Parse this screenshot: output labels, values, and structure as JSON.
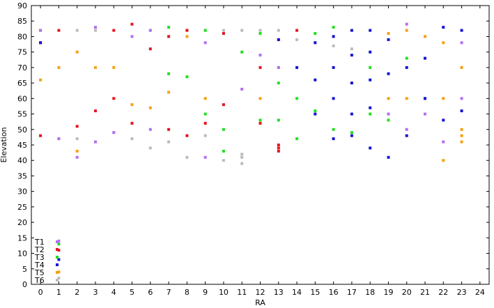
{
  "chart_data": {
    "type": "scatter",
    "title": "",
    "xlabel": "RA",
    "ylabel": "Elevation",
    "xlim": [
      -0.5,
      24.5
    ],
    "ylim": [
      0,
      90
    ],
    "xticks": [
      0,
      1,
      2,
      3,
      4,
      5,
      6,
      7,
      8,
      9,
      10,
      11,
      12,
      13,
      14,
      15,
      16,
      17,
      18,
      19,
      20,
      21,
      22,
      23,
      24
    ],
    "yticks": [
      0,
      5,
      10,
      15,
      20,
      25,
      30,
      35,
      40,
      45,
      50,
      55,
      60,
      65,
      70,
      75,
      80,
      85,
      90
    ],
    "grid": false,
    "legend_position": "bottom-left",
    "series": [
      {
        "name": "T1",
        "color": "#b36ff0",
        "x": [
          0,
          1,
          1,
          2,
          3,
          3,
          4,
          5,
          6,
          6,
          9,
          9,
          11,
          12,
          13,
          19,
          20,
          20,
          21,
          22,
          23,
          23
        ],
        "y": [
          82,
          14,
          47,
          41,
          83,
          46,
          49,
          80,
          82,
          50,
          41,
          78,
          63,
          74,
          70,
          55,
          84,
          50,
          55,
          46,
          78,
          60
        ]
      },
      {
        "name": "T2",
        "color": "#e8141e",
        "x": [
          0,
          0,
          1,
          1,
          2,
          3,
          4,
          4,
          5,
          5,
          6,
          7,
          7,
          8,
          8,
          9,
          10,
          10,
          12,
          12,
          13,
          13,
          13,
          13,
          14
        ],
        "y": [
          48,
          78,
          82,
          11,
          51,
          56,
          82,
          60,
          84,
          52,
          76,
          80,
          50,
          82,
          48,
          52,
          81,
          58,
          70,
          52,
          45,
          44,
          43,
          79,
          82
        ]
      },
      {
        "name": "T3",
        "color": "#20e020",
        "x": [
          1,
          7,
          7,
          8,
          9,
          9,
          10,
          10,
          11,
          12,
          12,
          13,
          13,
          14,
          14,
          15,
          15,
          16,
          16,
          17,
          18,
          18,
          19,
          20,
          21
        ],
        "y": [
          13,
          83,
          68,
          67,
          82,
          55,
          43,
          50,
          75,
          81,
          53,
          65,
          53,
          47,
          60,
          81,
          56,
          83,
          50,
          49,
          70,
          55,
          53,
          73,
          60
        ]
      },
      {
        "name": "T4",
        "color": "#1414d8",
        "x": [
          0,
          1,
          13,
          14,
          15,
          15,
          15,
          16,
          16,
          16,
          16,
          17,
          17,
          17,
          17,
          17,
          18,
          18,
          18,
          18,
          18,
          19,
          19,
          19,
          20,
          20,
          21,
          21,
          22,
          22,
          23,
          23
        ],
        "y": [
          78,
          8,
          79,
          70,
          78,
          66,
          55,
          80,
          70,
          60,
          47,
          82,
          74,
          65,
          55,
          48,
          82,
          75,
          66,
          57,
          44,
          79,
          68,
          41,
          70,
          48,
          73,
          60,
          83,
          53,
          82,
          56
        ]
      },
      {
        "name": "T5",
        "color": "#f5a014",
        "x": [
          0,
          0,
          1,
          1,
          2,
          2,
          3,
          4,
          5,
          6,
          7,
          8,
          9,
          12,
          13,
          19,
          19,
          20,
          20,
          21,
          22,
          22,
          22,
          23,
          23,
          23,
          23
        ],
        "y": [
          82,
          66,
          4,
          70,
          43,
          75,
          70,
          70,
          58,
          57,
          62,
          80,
          60,
          60,
          70,
          81,
          60,
          82,
          60,
          80,
          78,
          60,
          40,
          50,
          48,
          46,
          70
        ]
      },
      {
        "name": "T6",
        "color": "#bbbbbb",
        "x": [
          0,
          1,
          1,
          2,
          2,
          3,
          4,
          5,
          6,
          6,
          7,
          8,
          8,
          9,
          9,
          10,
          10,
          11,
          11,
          11,
          11,
          12,
          13,
          14,
          15,
          16,
          17
        ],
        "y": [
          82,
          2,
          47,
          82,
          47,
          82,
          49,
          47,
          82,
          44,
          46,
          82,
          41,
          82,
          48,
          82,
          40,
          82,
          42,
          41,
          39,
          82,
          82,
          79,
          78,
          77,
          76
        ]
      }
    ]
  }
}
